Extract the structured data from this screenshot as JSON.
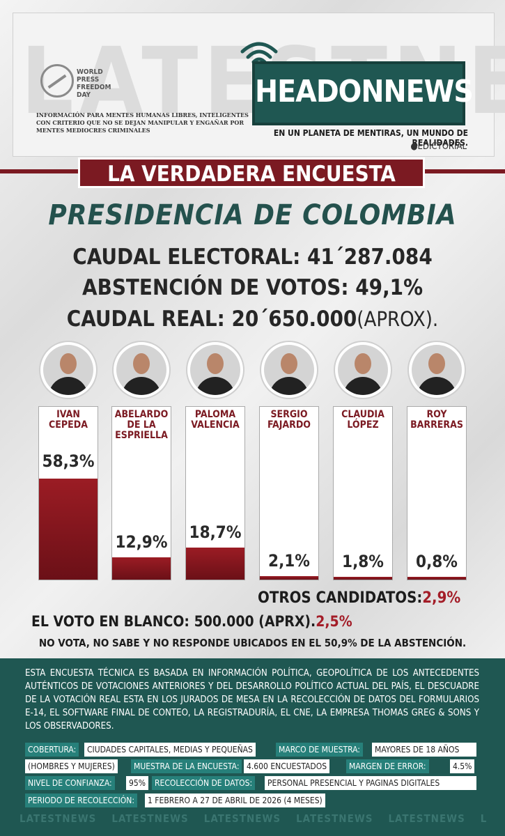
{
  "header": {
    "background_word": "LATESTNEWS",
    "wpfd_text": [
      "WORLD",
      "PRESS",
      "FREEDOM",
      "DAY"
    ],
    "tagline": "INFORMACIÓN PARA MENTES HUMANAS LIBRES, INTELIGENTES CON CRITERIO QUE NO SE DEJAN MANIPULAR Y ENGAÑAR POR MENTES MEDIOCRES CRIMINALES",
    "logo_part1": "HEADON",
    "logo_part2": "NEWS",
    "slogan": "EN UN PLANETA DE MENTIRAS, UN MUNDO DE REALIDADES.",
    "edictorial": "EDICTORIAL"
  },
  "title": "LA VERDADERA ENCUESTA",
  "subtitle": "PRESIDENCIA DE COLOMBIA",
  "stats": {
    "line1": "CAUDAL ELECTORAL: 41´287.084",
    "line2": "ABSTENCIÓN DE VOTOS: 49,1%",
    "line3": "CAUDAL REAL: 20´650.000",
    "line3_suffix": "(APROX)."
  },
  "chart_data": {
    "type": "bar",
    "categories": [
      "IVAN CEPEDA",
      "ABELARDO DE LA ESPRIELLA",
      "PALOMA VALENCIA",
      "SERGIO FAJARDO",
      "CLAUDIA LÓPEZ",
      "ROY BARRERAS"
    ],
    "values": [
      58.3,
      12.9,
      18.7,
      2.1,
      1.8,
      0.8
    ],
    "value_labels": [
      "58,3%",
      "12,9%",
      "18,7%",
      "2,1%",
      "1,8%",
      "0,8%"
    ],
    "bar_color": "#7b1a22",
    "ylim": [
      0,
      100
    ]
  },
  "candidates": [
    {
      "name_lines": [
        "IVAN",
        "CEPEDA"
      ],
      "label": "58,3%"
    },
    {
      "name_lines": [
        "ABELARDO",
        "DE LA",
        "ESPRIELLA"
      ],
      "label": "12,9%"
    },
    {
      "name_lines": [
        "PALOMA",
        "VALENCIA"
      ],
      "label": "18,7%"
    },
    {
      "name_lines": [
        "SERGIO",
        "FAJARDO"
      ],
      "label": "2,1%"
    },
    {
      "name_lines": [
        "CLAUDIA",
        "LÓPEZ"
      ],
      "label": "1,8%"
    },
    {
      "name_lines": [
        "ROY",
        "BARRERAS"
      ],
      "label": "0,8%"
    }
  ],
  "others": {
    "label": "OTROS CANDIDATOS:",
    "value": "2,9%"
  },
  "blank_vote": {
    "label": "EL VOTO EN BLANCO: 500.000 (APRX).",
    "value": "2,5%"
  },
  "no_vote": "NO VOTA, NO SABE Y NO RESPONDE UBICADOS EN EL 50,9% DE LA ABSTENCIÓN.",
  "methodology": {
    "paragraph": "ESTA ENCUESTA TÉCNICA ES BASADA EN INFORMACIÓN POLÍTICA, GEOPOLÍTICA DE LOS ANTECEDENTES AUTÉNTICOS DE VOTACIONES ANTERIORES Y DEL DESARROLLO POLÍTICO ACTUAL DEL PAÍS, EL DESCUADRE DE LA VOTACIÓN REAL ESTA EN LOS JURADOS DE MESA EN LA RECOLECCIÓN DE DATOS DEL FORMULARIOS E-14, EL SOFTWARE FINAL DE CONTEO, LA REGISTRADURÍA, EL CNE, LA EMPRESA THOMAS GREG & SONS Y LOS OBSERVADORES.",
    "cobertura_label": "COBERTURA:",
    "cobertura_value": "CIUDADES CAPITALES, MEDIAS Y PEQUEÑAS",
    "marco_label": "MARCO DE MUESTRA:",
    "marco_value": "MAYORES DE 18 AÑOS",
    "hombres_value": "(HOMBRES Y MUJERES)",
    "muestra_label": "MUESTRA DE LA ENCUESTA:",
    "muestra_value": "4.600 ENCUESTADOS",
    "margen_label": "MARGEN DE ERROR:",
    "margen_value": "4.5%",
    "confianza_label": "NIVEL DE CONFIANZA:",
    "confianza_value": "95%",
    "recoleccion_label": "RECOLECCIÓN DE DATOS:",
    "recoleccion_value": "PERSONAL PRESENCIAL Y PAGINAS DIGITALES",
    "periodo_label": "PERIODO DE RECOLECCIÓN:",
    "periodo_value": "1 FEBRERO A 27 DE ABRIL DE 2026 (4 MESES)"
  },
  "footer_watermark": "LATESTNEWS"
}
